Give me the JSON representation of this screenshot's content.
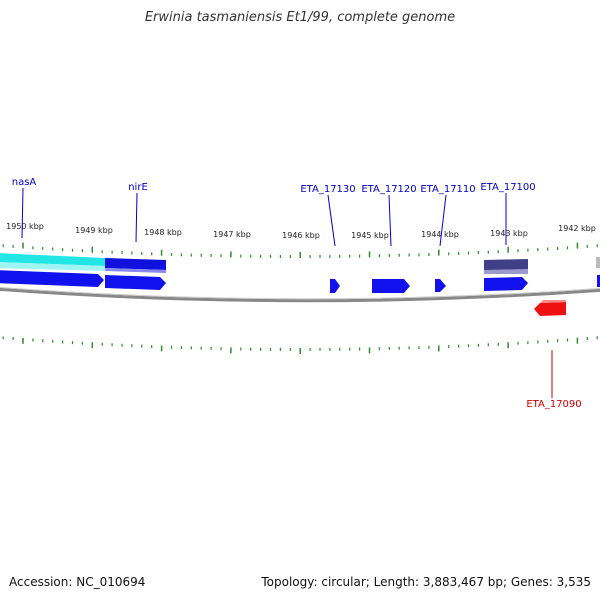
{
  "title": "Erwinia tasmaniensis Et1/99, complete genome",
  "footer": {
    "accession": "Accession: NC_010694",
    "summary": "Topology: circular; Length: 3,883,467 bp; Genes: 3,535"
  },
  "colors": {
    "gene_forward": "#0000ee",
    "gene_reverse": "#ee0000",
    "nasA_feature": "#00e5e5",
    "eta17100_feature": "#3f3f8a",
    "scale_tick": "#2e8b2e",
    "backbone": "#888888",
    "label_forward": "#0000cc",
    "label_reverse": "#cc0000"
  },
  "scale_labels": [
    {
      "text": "1950 kbp"
    },
    {
      "text": "1949 kbp"
    },
    {
      "text": "1948 kbp"
    },
    {
      "text": "1947 kbp"
    },
    {
      "text": "1946 kbp"
    },
    {
      "text": "1945 kbp"
    },
    {
      "text": "1944 kbp"
    },
    {
      "text": "1943 kbp"
    },
    {
      "text": "1942 kbp"
    }
  ],
  "gene_labels": [
    {
      "text": "nasA",
      "strand": "forward"
    },
    {
      "text": "nirE",
      "strand": "forward"
    },
    {
      "text": "ETA_17130",
      "strand": "forward"
    },
    {
      "text": "ETA_17120",
      "strand": "forward"
    },
    {
      "text": "ETA_17110",
      "strand": "forward"
    },
    {
      "text": "ETA_17100",
      "strand": "forward"
    },
    {
      "text": "ETA_17090",
      "strand": "reverse"
    }
  ]
}
